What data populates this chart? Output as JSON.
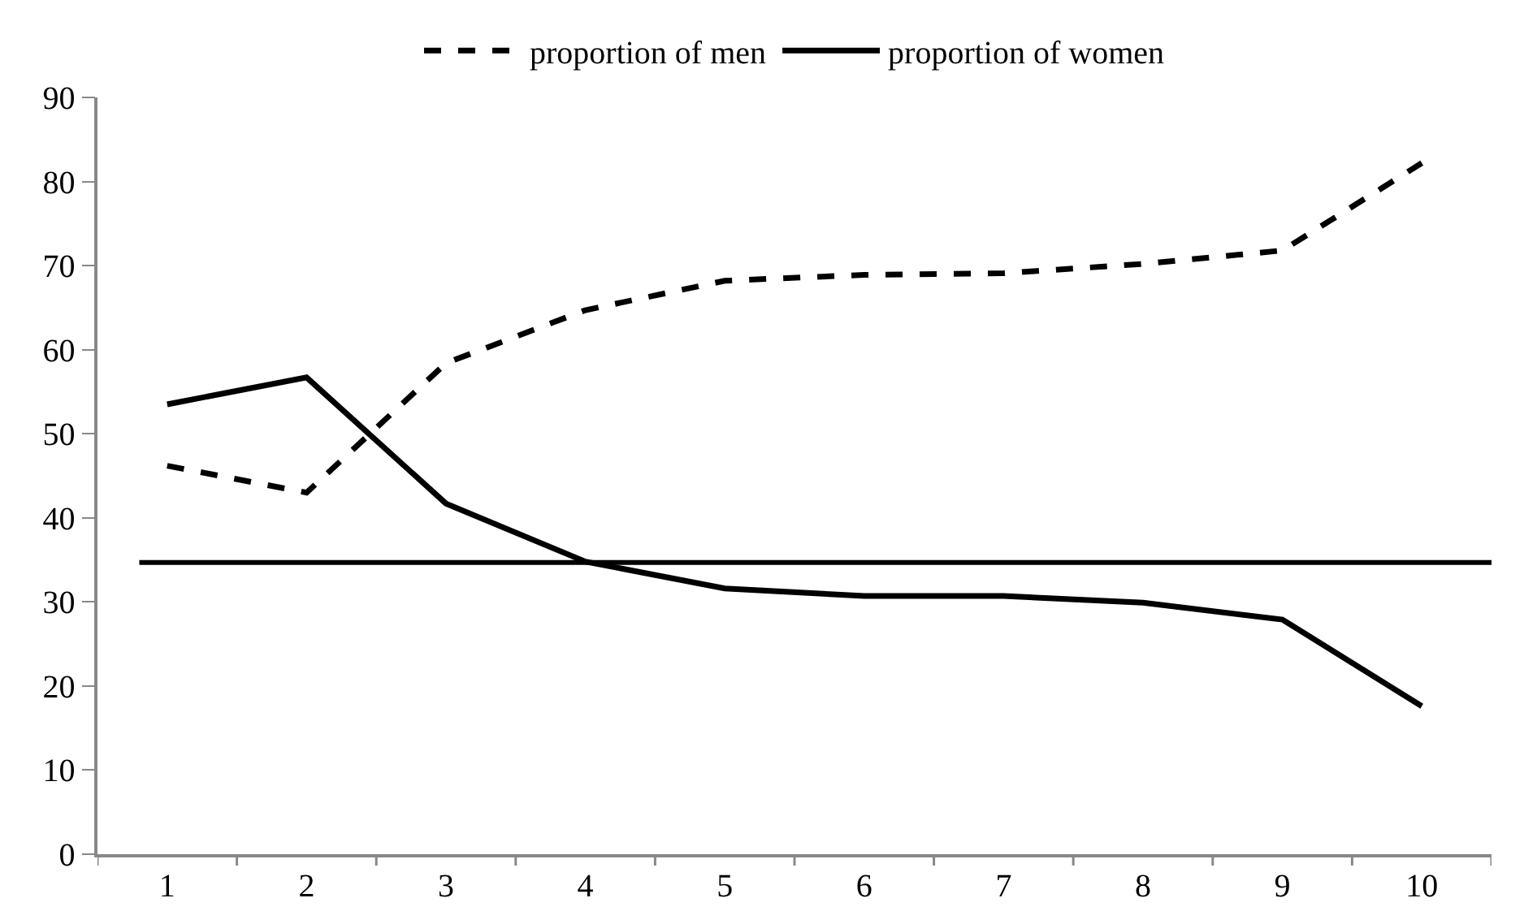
{
  "chart_data": {
    "type": "line",
    "categories": [
      "1",
      "2",
      "3",
      "4",
      "5",
      "6",
      "7",
      "8",
      "9",
      "10"
    ],
    "series": [
      {
        "name": "proportion of men",
        "color": "#000000",
        "line_style": "dashed",
        "values": [
          46.2,
          43.0,
          58.4,
          64.7,
          68.2,
          68.9,
          69.1,
          70.2,
          71.8,
          82.2
        ]
      },
      {
        "name": "proportion of women",
        "color": "#000000",
        "line_style": "solid",
        "values": [
          53.5,
          56.7,
          41.7,
          34.8,
          31.6,
          30.7,
          30.7,
          29.9,
          27.9,
          17.6
        ]
      }
    ],
    "ref_lines": [
      {
        "axis": "y",
        "value": 34.7,
        "color": "#000000",
        "line_style": "solid"
      }
    ],
    "ylim": [
      0,
      90
    ],
    "yticks": [
      0,
      10,
      20,
      30,
      40,
      50,
      60,
      70,
      80,
      90
    ],
    "legend": "top",
    "marker": "none"
  }
}
